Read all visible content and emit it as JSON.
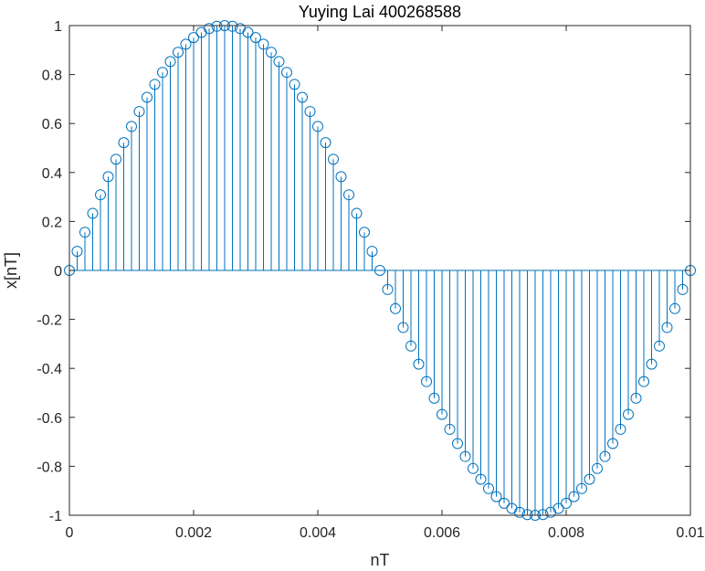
{
  "chart_data": {
    "type": "stem",
    "title": "Yuying Lai 400268588",
    "xlabel": "nT",
    "ylabel": "x[nT]",
    "xlim": [
      0,
      0.01
    ],
    "ylim": [
      -1,
      1
    ],
    "xticks": [
      0,
      0.002,
      0.004,
      0.006,
      0.008,
      0.01
    ],
    "xtick_labels": [
      "0",
      "0.002",
      "0.004",
      "0.006",
      "0.008",
      "0.01"
    ],
    "yticks": [
      -1,
      -0.8,
      -0.6,
      -0.4,
      -0.2,
      0,
      0.2,
      0.4,
      0.6,
      0.8,
      1
    ],
    "ytick_labels": [
      "-1",
      "-0.8",
      "-0.6",
      "-0.4",
      "-0.2",
      "0",
      "0.2",
      "0.4",
      "0.6",
      "0.8",
      "1"
    ],
    "grid": false,
    "series_color": "#0072BD",
    "marker": "circle-open",
    "x": [
      0,
      0.000125,
      0.00025,
      0.000375,
      0.0005,
      0.000625,
      0.00075,
      0.000875,
      0.001,
      0.001125,
      0.00125,
      0.001375,
      0.0015,
      0.001625,
      0.00175,
      0.001875,
      0.002,
      0.002125,
      0.00225,
      0.002375,
      0.0025,
      0.002625,
      0.00275,
      0.002875,
      0.003,
      0.003125,
      0.00325,
      0.003375,
      0.0035,
      0.003625,
      0.00375,
      0.003875,
      0.004,
      0.004125,
      0.00425,
      0.004375,
      0.0045,
      0.004625,
      0.00475,
      0.004875,
      0.005,
      0.005125,
      0.00525,
      0.005375,
      0.0055,
      0.005625,
      0.00575,
      0.005875,
      0.006,
      0.006125,
      0.00625,
      0.006375,
      0.0065,
      0.006625,
      0.00675,
      0.006875,
      0.007,
      0.007125,
      0.00725,
      0.007375,
      0.0075,
      0.007625,
      0.00775,
      0.007875,
      0.008,
      0.008125,
      0.00825,
      0.008375,
      0.0085,
      0.008625,
      0.00875,
      0.008875,
      0.009,
      0.009125,
      0.00925,
      0.009375,
      0.0095,
      0.009625,
      0.00975,
      0.009875,
      0.01
    ],
    "y": [
      0,
      0.078,
      0.156,
      0.233,
      0.309,
      0.383,
      0.454,
      0.522,
      0.588,
      0.649,
      0.707,
      0.76,
      0.809,
      0.853,
      0.891,
      0.924,
      0.951,
      0.972,
      0.988,
      0.997,
      1.0,
      0.997,
      0.988,
      0.972,
      0.951,
      0.924,
      0.891,
      0.853,
      0.809,
      0.76,
      0.707,
      0.649,
      0.588,
      0.522,
      0.454,
      0.383,
      0.309,
      0.233,
      0.156,
      0.078,
      0,
      -0.078,
      -0.156,
      -0.233,
      -0.309,
      -0.383,
      -0.454,
      -0.522,
      -0.588,
      -0.649,
      -0.707,
      -0.76,
      -0.809,
      -0.853,
      -0.891,
      -0.924,
      -0.951,
      -0.972,
      -0.988,
      -0.997,
      -1.0,
      -0.997,
      -0.988,
      -0.972,
      -0.951,
      -0.924,
      -0.891,
      -0.853,
      -0.809,
      -0.76,
      -0.707,
      -0.649,
      -0.588,
      -0.522,
      -0.454,
      -0.383,
      -0.309,
      -0.233,
      -0.156,
      -0.078,
      0
    ]
  }
}
